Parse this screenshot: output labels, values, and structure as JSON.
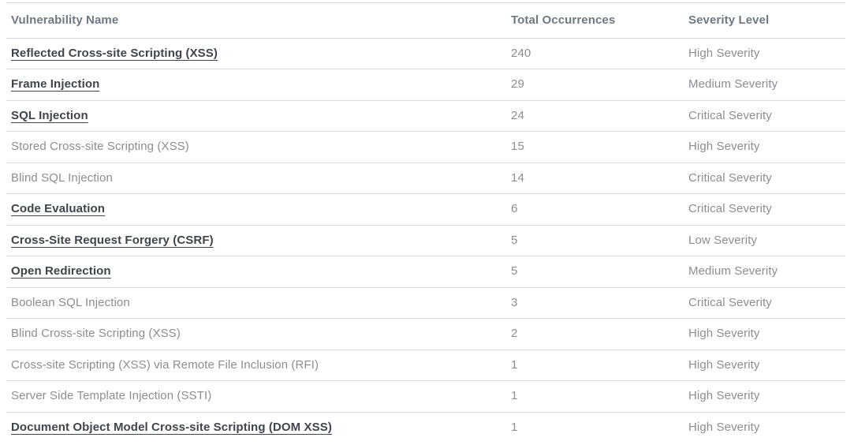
{
  "table": {
    "columns": [
      {
        "label": "Vulnerability Name"
      },
      {
        "label": "Total Occurrences"
      },
      {
        "label": "Severity Level"
      }
    ],
    "rows": [
      {
        "name": "Reflected Cross-site Scripting (XSS)",
        "occurrences": "240",
        "severity": "High Severity",
        "link": true
      },
      {
        "name": "Frame Injection",
        "occurrences": "29",
        "severity": "Medium Severity",
        "link": true
      },
      {
        "name": "SQL Injection",
        "occurrences": "24",
        "severity": "Critical Severity",
        "link": true
      },
      {
        "name": "Stored Cross-site Scripting (XSS)",
        "occurrences": "15",
        "severity": "High Severity",
        "link": false
      },
      {
        "name": "Blind SQL Injection",
        "occurrences": "14",
        "severity": "Critical Severity",
        "link": false
      },
      {
        "name": "Code Evaluation",
        "occurrences": "6",
        "severity": "Critical Severity",
        "link": true
      },
      {
        "name": "Cross-Site Request Forgery (CSRF)",
        "occurrences": "5",
        "severity": "Low Severity",
        "link": true
      },
      {
        "name": "Open Redirection",
        "occurrences": "5",
        "severity": "Medium Severity",
        "link": true
      },
      {
        "name": "Boolean SQL Injection",
        "occurrences": "3",
        "severity": "Critical Severity",
        "link": false
      },
      {
        "name": "Blind Cross-site Scripting (XSS)",
        "occurrences": "2",
        "severity": "High Severity",
        "link": false
      },
      {
        "name": "Cross-site Scripting (XSS) via Remote File Inclusion (RFI)",
        "occurrences": "1",
        "severity": "High Severity",
        "link": false
      },
      {
        "name": "Server Side Template Injection (SSTI)",
        "occurrences": "1",
        "severity": "High Severity",
        "link": false
      },
      {
        "name": "Document Object Model Cross-site Scripting (DOM XSS)",
        "occurrences": "1",
        "severity": "High Severity",
        "link": true
      }
    ],
    "colors": {
      "separator": "#d9dbdc",
      "header_text": "#6e7883",
      "link_text": "#3e454c",
      "plain_text": "#8a8e93",
      "background": "#ffffff"
    }
  }
}
